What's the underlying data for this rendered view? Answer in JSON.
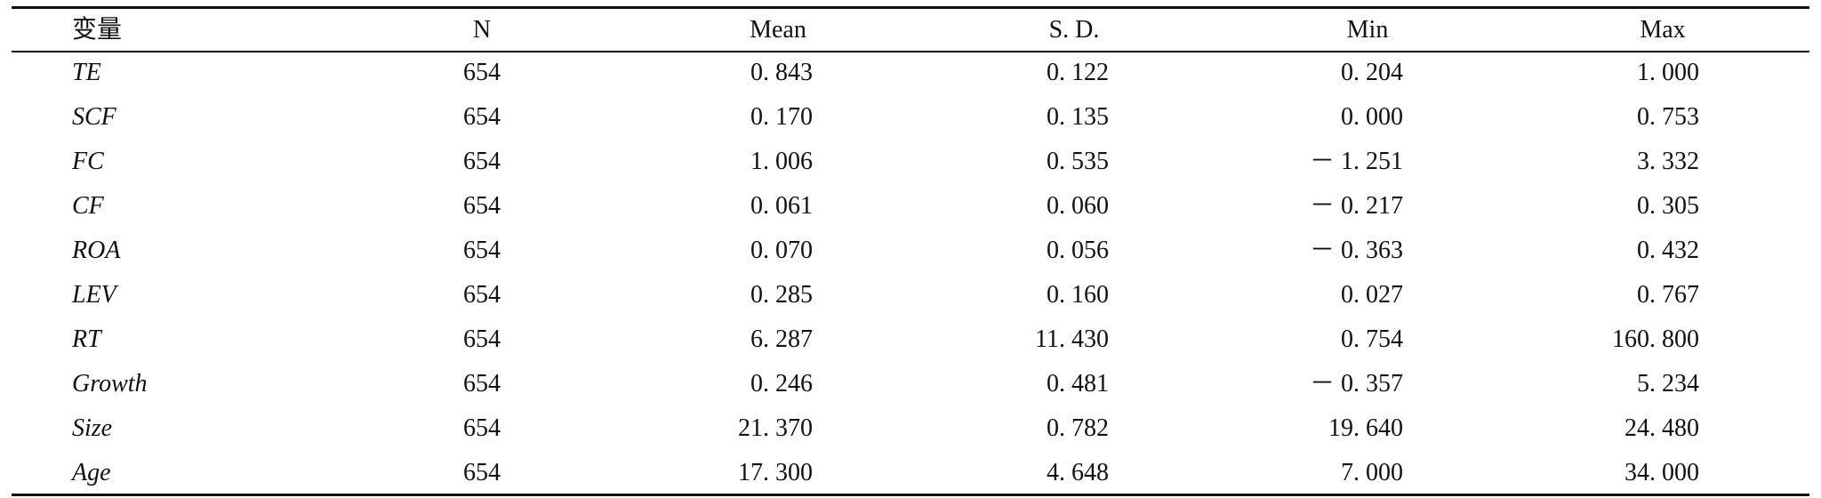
{
  "table": {
    "header": [
      "变量",
      "N",
      "Mean",
      "S. D.",
      "Min",
      "Max"
    ],
    "rows": [
      [
        "TE",
        "654",
        "0. 843",
        "0. 122",
        "0. 204",
        "1. 000"
      ],
      [
        "SCF",
        "654",
        "0. 170",
        "0. 135",
        "0. 000",
        "0. 753"
      ],
      [
        "FC",
        "654",
        "1. 006",
        "0. 535",
        "－ 1. 251",
        "3. 332"
      ],
      [
        "CF",
        "654",
        "0. 061",
        "0. 060",
        "－ 0. 217",
        "0. 305"
      ],
      [
        "ROA",
        "654",
        "0. 070",
        "0. 056",
        "－ 0. 363",
        "0. 432"
      ],
      [
        "LEV",
        "654",
        "0. 285",
        "0. 160",
        "0. 027",
        "0. 767"
      ],
      [
        "RT",
        "654",
        "6. 287",
        "11. 430",
        "0. 754",
        "160. 800"
      ],
      [
        "Growth",
        "654",
        "0. 246",
        "0. 481",
        "－ 0. 357",
        "5. 234"
      ],
      [
        "Size",
        "654",
        "21. 370",
        "0. 782",
        "19. 640",
        "24. 480"
      ],
      [
        "Age",
        "654",
        "17. 300",
        "4. 648",
        "7. 000",
        "34. 000"
      ]
    ]
  }
}
